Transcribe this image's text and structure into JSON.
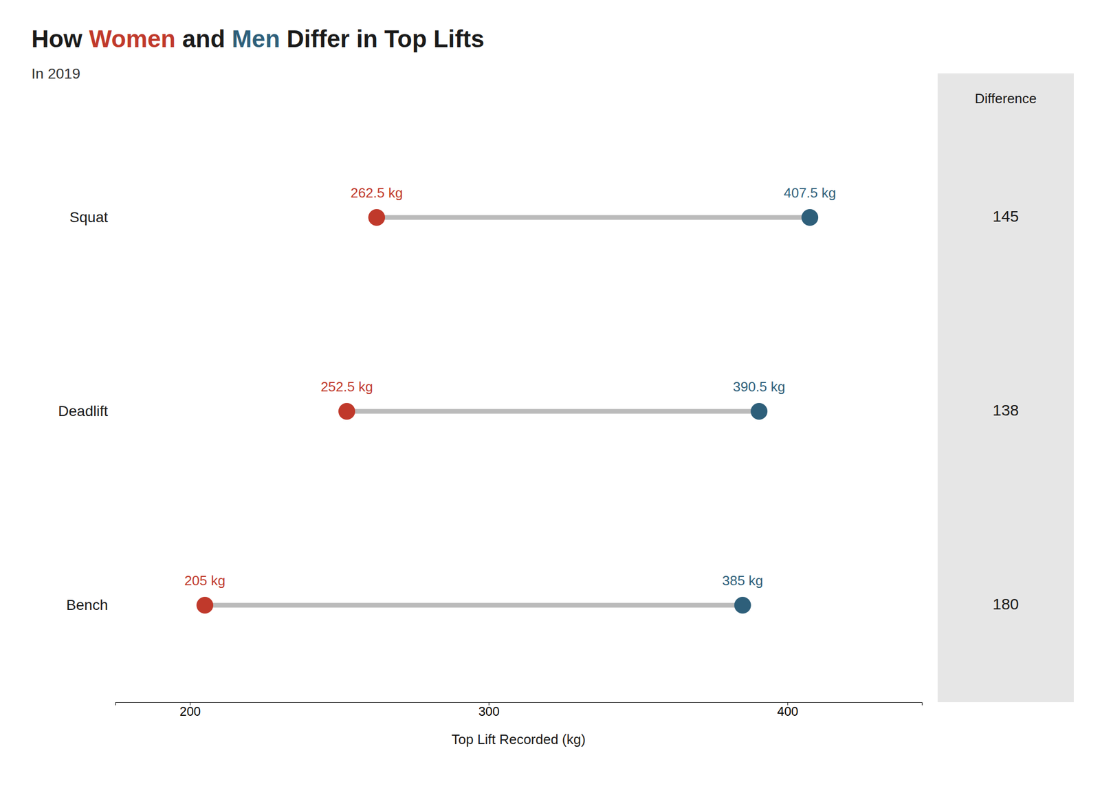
{
  "chart_data": {
    "type": "dumbbell",
    "title": "How Women and Men Differ in Top Lifts",
    "subtitle": "In 2019",
    "categories": [
      "Squat",
      "Deadlift",
      "Bench"
    ],
    "series": [
      {
        "name": "Women",
        "color": "#c0392b",
        "values": [
          262.5,
          252.5,
          205.0
        ],
        "value_labels": [
          "262.5 kg",
          "252.5 kg",
          "205 kg"
        ]
      },
      {
        "name": "Men",
        "color": "#2e5f7a",
        "values": [
          407.5,
          390.5,
          385.0
        ],
        "value_labels": [
          "407.5 kg",
          "390.5 kg",
          "385 kg"
        ]
      }
    ],
    "differences": {
      "label": "Difference",
      "values": [
        145,
        138,
        180
      ]
    },
    "xlabel": "Top Lift Recorded (kg)",
    "xlim": [
      175,
      445
    ],
    "xticks": [
      200,
      300,
      400
    ],
    "grid": false
  }
}
